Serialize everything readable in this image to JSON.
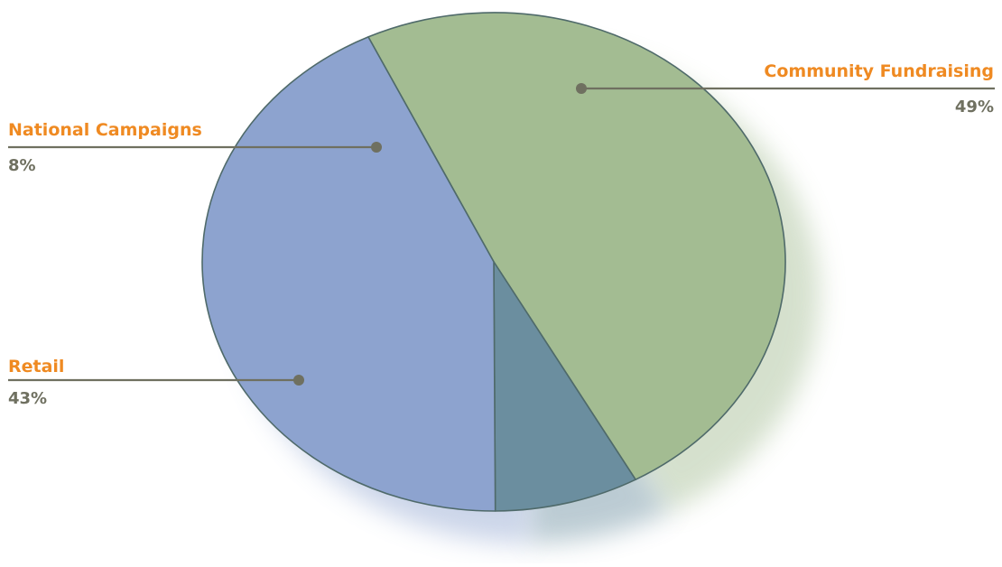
{
  "chart_data": {
    "type": "pie",
    "title": "",
    "slices": [
      {
        "label": "Community Fundraising",
        "value": 49,
        "value_label": "49%",
        "color": "#a3bc92"
      },
      {
        "label": "National Campaigns",
        "value": 8,
        "value_label": "8%",
        "color": "#6b8e9f"
      },
      {
        "label": "Retail",
        "value": 43,
        "value_label": "43%",
        "color": "#8da3cf"
      }
    ],
    "label_color": "#ef8a22",
    "value_label_color": "#6f7060",
    "edge_color": "#4f6a6a",
    "legend": "none"
  }
}
